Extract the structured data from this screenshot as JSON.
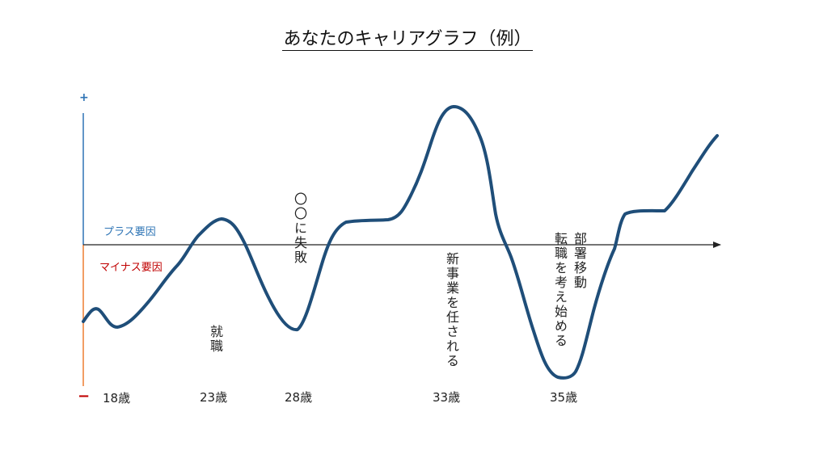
{
  "title": "あなたのキャリアグラフ（例）",
  "axis": {
    "plus_sign": "+",
    "minus_sign": "−",
    "plus_label": "プラス要因",
    "minus_label": "マイナス要因",
    "plus_color": "#2e74b5",
    "minus_color": "#ed7d31",
    "line_color": "#1f4e79"
  },
  "ages": [
    "18歳",
    "23歳",
    "28歳",
    "33歳",
    "35歳"
  ],
  "events": {
    "shushoku": "就職",
    "shippai": "〇〇に失敗",
    "shinjigyo": "新事業を任される",
    "tenshoku": "転職を考え始める",
    "busho": "部署移動"
  }
}
